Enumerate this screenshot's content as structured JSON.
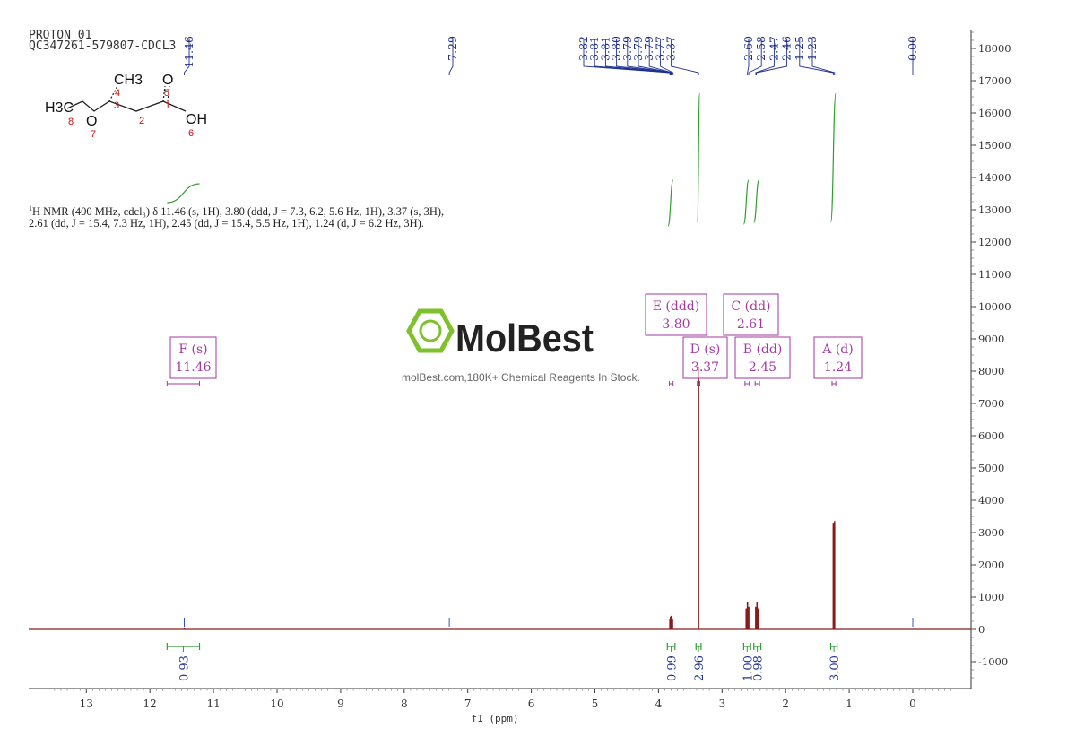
{
  "header": {
    "line1": "PROTON_01",
    "line2": "QC347261-579807-CDCL3"
  },
  "description": {
    "line1_prefix": "1",
    "line1_rest": "H NMR (400 MHz, cdcl₃) δ 11.46 (s, 1H), 3.80 (ddd, J = 7.3, 6.2, 5.6 Hz, 1H), 3.37 (s, 3H),",
    "line2": "2.61 (dd, J = 15.4, 7.3 Hz, 1H), 2.45 (dd, J = 15.4, 5.5 Hz, 1H), 1.24 (d, J = 6.2 Hz, 3H)."
  },
  "molecule": {
    "atoms": [
      "CH3",
      "O",
      "H3C",
      "O",
      "OH"
    ],
    "atom_numbers": [
      "4",
      "5",
      "3",
      "1",
      "2",
      "8",
      "7",
      "6"
    ]
  },
  "watermark": {
    "brand": "MolBest",
    "tagline": "molBest.com,180K+ Chemical Reagents In Stock."
  },
  "colors": {
    "spectrum": "#8b1a1a",
    "peak_label": "#1f2f8f",
    "integral": "#2e9e2e",
    "multiplet_box": "#a23aa2",
    "brand": "#7ec12a"
  },
  "chart_data": {
    "type": "line",
    "xlabel": "f1 (ppm)",
    "x_reversed": true,
    "xlim": [
      14.0,
      -1.0
    ],
    "ylim": [
      -1800,
      18500
    ],
    "x_ticks": [
      "13",
      "12",
      "11",
      "10",
      "9",
      "8",
      "7",
      "6",
      "5",
      "4",
      "3",
      "2",
      "1",
      "0"
    ],
    "y_ticks": [
      "18000",
      "17000",
      "16000",
      "15000",
      "14000",
      "13000",
      "12000",
      "11000",
      "10000",
      "9000",
      "8000",
      "7000",
      "6000",
      "5000",
      "4000",
      "3000",
      "2000",
      "1000",
      "0",
      "-1000"
    ],
    "peak_labels": [
      "11.46",
      "7.29",
      "3.82",
      "3.81",
      "3.81",
      "3.80",
      "3.79",
      "3.79",
      "3.79",
      "3.77",
      "3.37",
      "2.60",
      "2.58",
      "2.47",
      "2.46",
      "1.25",
      "1.23",
      "0.00"
    ],
    "peaks": [
      {
        "ppm": 11.46,
        "intensity": 60
      },
      {
        "ppm": 3.82,
        "intensity": 330
      },
      {
        "ppm": 3.81,
        "intensity": 390
      },
      {
        "ppm": 3.8,
        "intensity": 420
      },
      {
        "ppm": 3.79,
        "intensity": 390
      },
      {
        "ppm": 3.78,
        "intensity": 330
      },
      {
        "ppm": 3.37,
        "intensity": 8150
      },
      {
        "ppm": 2.62,
        "intensity": 650
      },
      {
        "ppm": 2.6,
        "intensity": 860
      },
      {
        "ppm": 2.58,
        "intensity": 700
      },
      {
        "ppm": 2.47,
        "intensity": 700
      },
      {
        "ppm": 2.45,
        "intensity": 860
      },
      {
        "ppm": 2.43,
        "intensity": 650
      },
      {
        "ppm": 1.25,
        "intensity": 3300
      },
      {
        "ppm": 1.23,
        "intensity": 3350
      }
    ],
    "multiplets": [
      {
        "label": "F (s)",
        "shift": "11.46",
        "range": [
          11.73,
          11.22
        ]
      },
      {
        "label": "E (ddd)",
        "shift": "3.80",
        "range": [
          3.83,
          3.77
        ]
      },
      {
        "label": "D (s)",
        "shift": "3.37",
        "range": [
          3.39,
          3.35
        ]
      },
      {
        "label": "C (dd)",
        "shift": "2.61",
        "range": [
          2.64,
          2.57
        ]
      },
      {
        "label": "B (dd)",
        "shift": "2.45",
        "range": [
          2.48,
          2.41
        ]
      },
      {
        "label": "A (d)",
        "shift": "1.24",
        "range": [
          1.27,
          1.21
        ]
      }
    ],
    "integrals": [
      {
        "from": 11.73,
        "to": 11.22,
        "value": "0.93"
      },
      {
        "from": 3.86,
        "to": 3.74,
        "value": "0.99"
      },
      {
        "from": 3.41,
        "to": 3.33,
        "value": "2.96"
      },
      {
        "from": 2.66,
        "to": 2.55,
        "value": "1.00"
      },
      {
        "from": 2.5,
        "to": 2.39,
        "value": "0.98"
      },
      {
        "from": 1.29,
        "to": 1.19,
        "value": "3.00"
      }
    ]
  }
}
